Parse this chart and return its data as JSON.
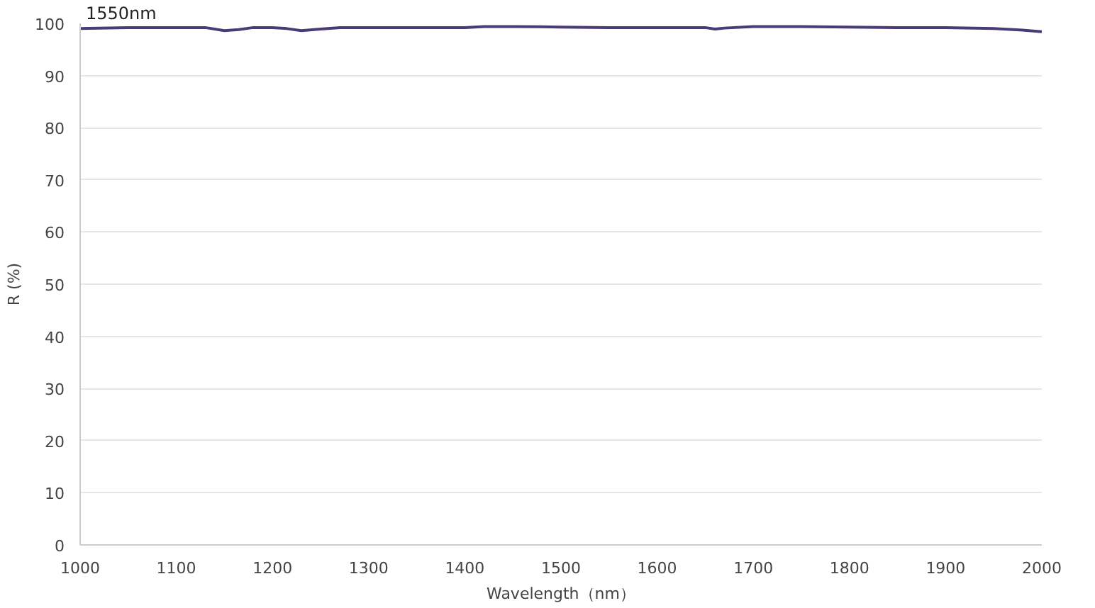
{
  "chart_data": {
    "type": "line",
    "xlabel": "Wavelength（nm）",
    "ylabel": "R (%)",
    "annotations": [
      "1550nm"
    ],
    "x": [
      1000,
      1050,
      1100,
      1130,
      1150,
      1165,
      1180,
      1200,
      1215,
      1230,
      1250,
      1270,
      1300,
      1350,
      1400,
      1420,
      1450,
      1500,
      1550,
      1600,
      1650,
      1660,
      1670,
      1700,
      1750,
      1800,
      1850,
      1900,
      1950,
      1980,
      2000
    ],
    "series": [
      {
        "color": "#4b3a78",
        "values": [
          99.0,
          99.2,
          99.2,
          99.2,
          98.6,
          98.8,
          99.2,
          99.2,
          99.0,
          98.6,
          98.9,
          99.2,
          99.2,
          99.2,
          99.2,
          99.4,
          99.4,
          99.3,
          99.2,
          99.2,
          99.2,
          98.9,
          99.1,
          99.4,
          99.4,
          99.3,
          99.2,
          99.2,
          99.0,
          98.7,
          98.4
        ]
      }
    ],
    "xlim": [
      1000,
      2000
    ],
    "xticks": [
      1000,
      1100,
      1200,
      1300,
      1400,
      1500,
      1600,
      1700,
      1800,
      1900,
      2000
    ],
    "ylim": [
      0,
      100
    ],
    "yticks": [
      0,
      10,
      20,
      30,
      40,
      50,
      60,
      70,
      80,
      90,
      100
    ],
    "grid": "y"
  }
}
